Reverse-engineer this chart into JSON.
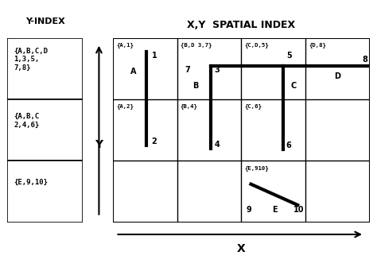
{
  "title_left": "Y-INDEX",
  "title_right": "X,Y  SPATIAL INDEX",
  "xlabel": "X",
  "ylabel": "Y",
  "left_boxes": [
    {
      "text": "{A,B,C,D\n1,3,5,\n7,8}"
    },
    {
      "text": "{A,B,C\n2,4,6}"
    },
    {
      "text": "{E,9,10}"
    }
  ],
  "cell_labels": [
    {
      "row": 0,
      "col": 0,
      "text": "{A,1}"
    },
    {
      "row": 0,
      "col": 1,
      "text": "{B,D 3,7}"
    },
    {
      "row": 0,
      "col": 2,
      "text": "{C,D,5}"
    },
    {
      "row": 0,
      "col": 3,
      "text": "{D,8}"
    },
    {
      "row": 1,
      "col": 0,
      "text": "{A,2}"
    },
    {
      "row": 1,
      "col": 1,
      "text": "{B,4}"
    },
    {
      "row": 1,
      "col": 2,
      "text": "{C,6}"
    },
    {
      "row": 2,
      "col": 2,
      "text": "{E,910}"
    }
  ],
  "bg_color": "#ffffff"
}
